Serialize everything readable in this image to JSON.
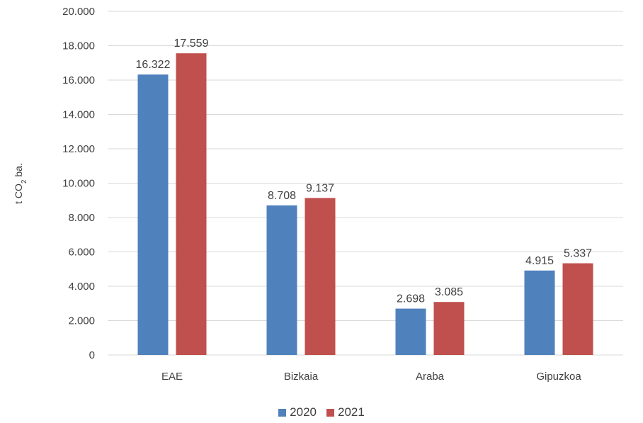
{
  "chart_data": {
    "type": "bar",
    "categories": [
      "EAE",
      "Bizkaia",
      "Araba",
      "Gipuzkoa"
    ],
    "series": [
      {
        "name": "2020",
        "color": "#4F81BD",
        "values": [
          16322,
          8708,
          2698,
          4915
        ],
        "labels": [
          "16.322",
          "8.708",
          "2.698",
          "4.915"
        ]
      },
      {
        "name": "2021",
        "color": "#C0504D",
        "values": [
          17559,
          9137,
          3085,
          5337
        ],
        "labels": [
          "17.559",
          "9.137",
          "3.085",
          "5.337"
        ]
      }
    ],
    "ylabel": {
      "main": "t CO",
      "sub": "2",
      "suffix": " ba."
    },
    "ylim": [
      0,
      20000
    ],
    "yticks": [
      0,
      2000,
      4000,
      6000,
      8000,
      10000,
      12000,
      14000,
      16000,
      18000,
      20000
    ],
    "ytick_labels": [
      "0",
      "2.000",
      "4.000",
      "6.000",
      "8.000",
      "10.000",
      "12.000",
      "14.000",
      "16.000",
      "18.000",
      "20.000"
    ],
    "grid": true,
    "gridline_color": "#D9D9D9",
    "legend_position": "bottom"
  }
}
